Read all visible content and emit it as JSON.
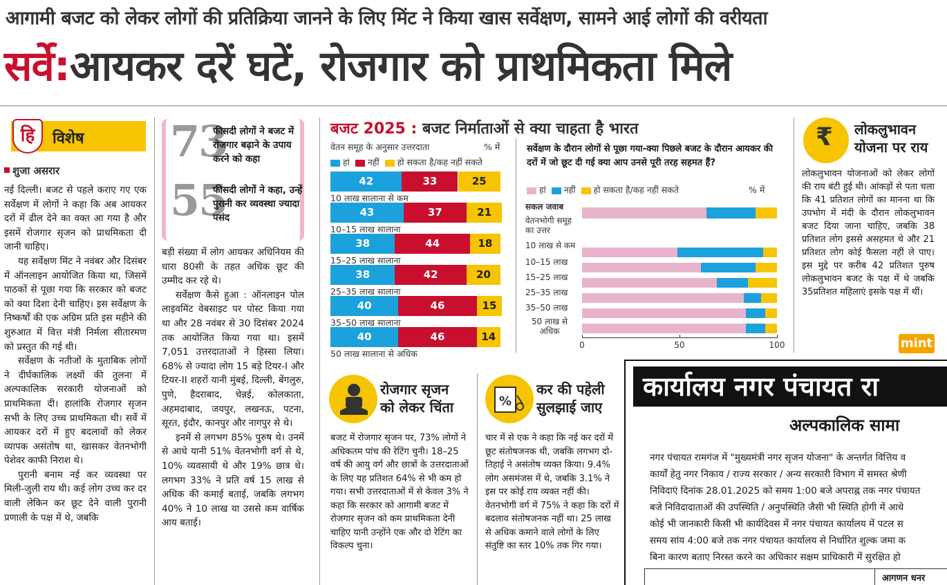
{
  "kicker": "आगामी बजट को लेकर लोगों की प्रतिक्रिया जानने के लिए मिंट ने किया खास सर्वेक्षण, सामने आई लोगों की वरीयता",
  "headline": {
    "prefix": "सर्वे:",
    "main": "आयकर दरें घटें, रोजगार को प्राथमिकता मिले"
  },
  "section_label": "विशेष",
  "logo_letter": "हि",
  "byline": "शुजा असरार",
  "col1": [
    "नई दिल्ली। बजट से पहले कराए गए एक सर्वेक्षण में लोगों ने कहा कि अब आयकर दरों में ढील देने का वक्त आ गया है और इसमें रोजगार सृजन को प्राथमिकता दी जानी चाहिए।",
    "यह सर्वेक्षण मिंट ने नवंबर और दिसंबर में ऑनलाइन आयोजित किया था, जिसमें पाठकों से पूछा गया कि सरकार को बजट को क्या दिशा देनी चाहिए। इस सर्वेक्षण के निष्कर्षों की एक अग्रिम प्रति इस महीने की शुरुआत में वित्त मंत्री निर्मला सीतारमण को प्रस्तुत की गई थी।",
    "सर्वेक्षण के नतीजों के मुताबिक लोगों ने दीर्घकालिक लक्ष्यों की तुलना में अल्पकालिक सरकारी योजनाओं को प्राथमिकता दी। हालांकि रोजगार सृजन सभी के लिए उच्च प्राथमिकता थी। सर्वे में आयकर दरों में हुए बदलावों को लेकर व्यापक असंतोष था, खासकर वेतनभोगी पेशेवर काफी निराश थे।",
    "पुरानी बनाम नई कर व्यवस्था पर मिली-जुली राय थी। कई लोग उच्च कर दर वाली लेकिन कर छूट देने वाली पुरानी प्रणाली के पक्ष में थे, जबकि"
  ],
  "stats": [
    {
      "num": "73",
      "text": "फीसदी लोगों ने बजट में रोजगार बढ़ाने के उपाय करने को कहा"
    },
    {
      "num": "55",
      "text": "फीसदी लोगों ने कहा, उन्हें पुरानी कर व्यवस्था ज्यादा पसंद"
    }
  ],
  "col2": [
    "बड़ी संख्या में लोग आयकर अधिनियम की धारा 80सी के तहत अधिक छूट की उम्मीद कर रहे थे।",
    "सर्वेक्षण कैसे हुआ : ऑनलाइन पोल लाइवमिंट वेबसाइट पर पोस्ट किया गया था और 28 नवंबर से 30 दिसंबर 2024 तक आयोजित किया गया था। इसमें 7,051 उत्तरदाताओं ने हिस्सा लिया। 68% से ज्यादा लोग 15 बड़े टियर-I और टियर-II शहरों यानी मुंबई, दिल्ली, बेंगलुरु, पुणे, हैदराबाद, चेन्नई, कोलकाता, अहमदाबाद, जयपुर, लखनऊ, पटना, सूरत, इंदौर, कानपुर और नागपुर से थे।",
    "इनमें से लगभग 85% पुरुष थे। उनमें से आधे यानी 51% वेतनभोगी वर्ग से थे, 10% व्यवसायी थे और 19% छात्र थे। लगभग 33% ने प्रति वर्ष 15 लाख से अधिक की कमाई बताई, जबकि लगभग 40% ने 10 लाख या उससे कम वार्षिक आय बताई।"
  ],
  "chart_header": {
    "year": "बजट 2025 :",
    "title": "बजट निर्माताओं से क्या चाहता है भारत"
  },
  "chart_data": [
    {
      "type": "bar",
      "title": "वेतन समूह के अनुसार उत्तरदाता",
      "unit": "% में",
      "legend": [
        "हां",
        "नहीं",
        "हो सकता है/कह नहीं सकते"
      ],
      "colors": [
        "#1ba1dc",
        "#c8102e",
        "#f6c400"
      ],
      "categories": [
        "10 लाख सालाना से कम",
        "10–15 लाख सालाना",
        "15–25 लाख सालाना",
        "25–35 लाख सालाना",
        "35–50 लाख सालाना",
        "50 लाख सालाना से अधिक"
      ],
      "series": [
        {
          "name": "हां",
          "values": [
            42,
            43,
            38,
            38,
            40,
            40
          ]
        },
        {
          "name": "नहीं",
          "values": [
            33,
            37,
            44,
            42,
            46,
            46
          ]
        },
        {
          "name": "हो सकता है/कह नहीं सकते",
          "values": [
            25,
            21,
            18,
            20,
            15,
            14
          ]
        }
      ]
    },
    {
      "type": "bar",
      "orientation": "horizontal-stacked",
      "title": "सर्वेक्षण के दौरान लोगों से पूछा गया-क्या पिछले बजट के दौरान आयकर की दरों में जो छूट दी गई क्या आप उनसे पूरी तरह सहमत हैं?",
      "unit": "% में",
      "legend": [
        "हां",
        "नहीं",
        "हो सकता है/कह नहीं सकते"
      ],
      "colors": [
        "#e8b4cc",
        "#1ba1dc",
        "#f6c400"
      ],
      "categories": [
        "सकल जवाब",
        "वेतनभोगी समूह का उत्तर",
        "10 लाख से कम",
        "10–15 लाख",
        "15–25 लाख",
        "25–35 लाख",
        "35–50 लाख",
        "50 लाख से अधिक"
      ],
      "series": [
        {
          "name": "हां",
          "values": [
            64,
            null,
            49,
            61,
            69,
            83,
            84,
            84
          ]
        },
        {
          "name": "नहीं",
          "values": [
            25,
            null,
            44,
            28,
            16,
            9,
            10,
            10
          ]
        },
        {
          "name": "हो सकता है/कह नहीं सकते",
          "values": [
            11,
            null,
            7,
            11,
            15,
            8,
            6,
            6
          ]
        }
      ],
      "xticks": [
        "0",
        "50",
        "100"
      ],
      "xlim": [
        0,
        100
      ]
    }
  ],
  "populist": {
    "title_line1": "लोकलुभावन",
    "title_line2": "योजना पर राय",
    "body": "लोकलुभावन योजनाओं को लेकर लोगों की राय बंटी हुई थी। आंकड़ों से पता चला कि 41 प्रतिशत लोगों का मानना था कि उपभोग में मंदी के दौरान लोकलुभावन बजट दिया जाना चाहिए, जबकि 38 प्रतिशत लोग इससे असहमत थे और 21 प्रतिशत लोग कोई फैसला नहीं ले पाए। इस मुद्दे पर करीब 42 प्रतिशत पुरुष लोकलुभावन बजट के पक्ष में थे जबकि 35प्रतिशत महिलाएं इसके पक्ष में थीं।",
    "icon_symbol": "₹"
  },
  "mint_logo": "mint",
  "jobs": {
    "title_line1": "रोजगार सृजन",
    "title_line2": "को लेकर चिंता",
    "body": "बजट में रोजगार सृजन पर, 73% लोगों ने अधिकतम पांच की रेटिंग चुनी। 18–25 वर्ष की आयु वर्ग और छात्रों के उत्तरदाताओं के लिए यह प्रतिशत 64% से भी कम हो गया। सभी उत्तरदाताओं में से केवल 3% ने कहा कि सरकार को आगामी बजट में रोजगार सृजन को कम प्राथमिकता देनी चाहिए यानी उन्होंने एक और दो रेटिंग का विकल्प चुना।"
  },
  "tax": {
    "title_line1": "कर की पहेली",
    "title_line2": "सुलझाई जाए",
    "body": "चार में से एक ने कहा कि नई कर दरों में छूट संतोषजनक थी, जबकि लगभग दो-तिहाई ने असंतोष व्यक्त किया। 9.4% लोग असमंजस में थे, जबकि 3.1% ने इस पर कोई राय व्यक्त नहीं की। वेतनभोगी वर्ग में 75% ने कहा कि दरों में बदलाव संतोषजनक नहीं था। 25 लाख से अधिक कमाने वाले लोगों के लिए संतुष्टि का स्तर 10% तक गिर गया।"
  },
  "notice": {
    "heading": "कार्यालय नगर पंचायत रा",
    "subheading": "अल्पकालिक सामा",
    "lines": [
      "नगर पंचायत रामगंज में \"मुख्यमंत्री नगर सृजन योजना\" के अन्तर्गत वित्तिय व",
      "कार्यों हेतु नगर निकाय / राज्य सरकार / अन्य सरकारी विभाग में समस्त श्रेणी",
      "निविदाएं दिनांक 28.01.2025 को समय 1:00 बजे अपराह्न तक नगर पंचायत",
      "बजे निविदादाताओं की उपस्थिति / अनुपस्थिति जैसी भी स्थिति होगी में आधे",
      "कोई भी जानकारी किसी भी कार्यदिवस में नगर पंचायत कार्यालय में पटल स",
      "समय सांय 4:00 बजे तक नगर पंचायत कार्यालय से निर्धारित शुल्क जमा क",
      "बिना कारण बताए निरस्त करने का अधिकार सक्षम प्राधिकारी में सुरक्षित हो"
    ],
    "table_header": "आगणन धनर"
  }
}
